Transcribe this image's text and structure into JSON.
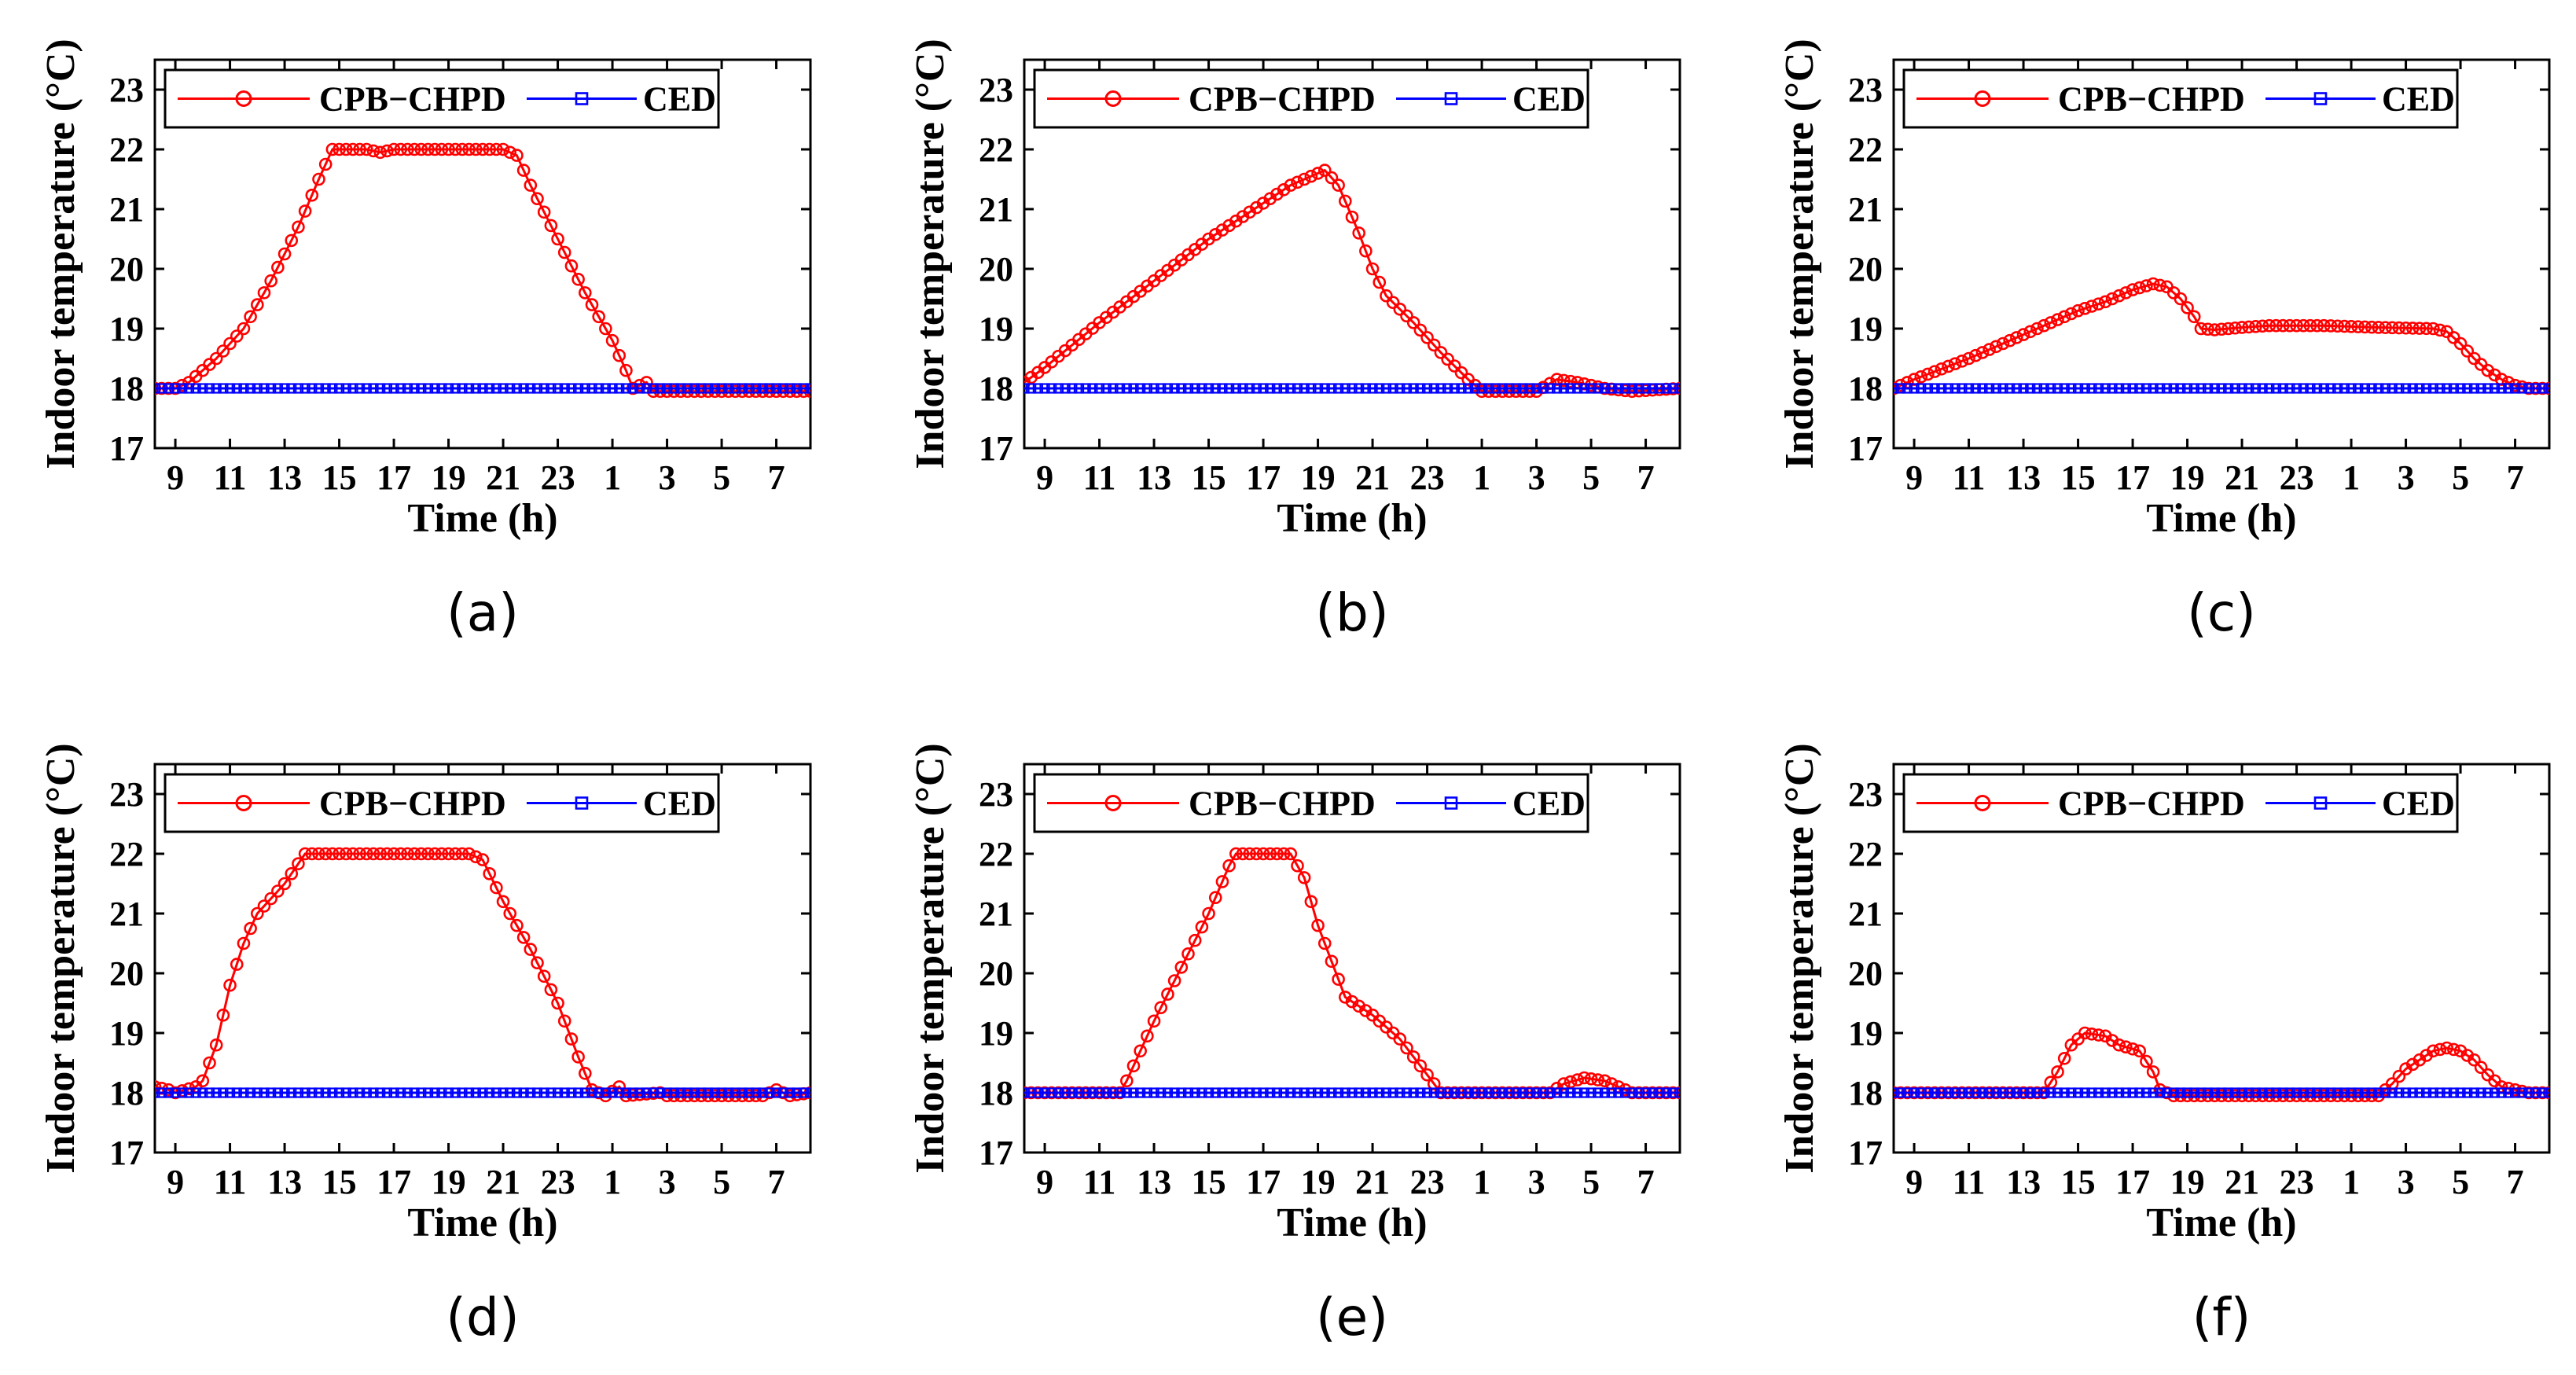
{
  "chart_data": [
    {
      "type": "line",
      "caption": "(a)",
      "xlabel": "Time (h)",
      "ylabel": "Indoor temperature (°C)",
      "xticks": [
        "9",
        "11",
        "13",
        "15",
        "17",
        "19",
        "21",
        "23",
        "1",
        "3",
        "5",
        "7"
      ],
      "yticks": [
        "17",
        "18",
        "19",
        "20",
        "21",
        "22",
        "23"
      ],
      "ylim": [
        17,
        23.5
      ],
      "legend": [
        "CPB−CHPD",
        "CED"
      ],
      "series": [
        {
          "name": "CPB−CHPD",
          "color": "#ff0000",
          "marker": "circle",
          "points": [
            [
              8.25,
              18
            ],
            [
              9,
              18
            ],
            [
              9.5,
              18.1
            ],
            [
              10.5,
              18.5
            ],
            [
              11.5,
              19.0
            ],
            [
              12.5,
              19.8
            ],
            [
              13.5,
              20.7
            ],
            [
              14.25,
              21.5
            ],
            [
              14.75,
              22
            ],
            [
              16,
              22
            ],
            [
              16.5,
              21.95
            ],
            [
              17,
              22
            ],
            [
              21,
              22
            ],
            [
              21.5,
              21.9
            ],
            [
              22,
              21.4
            ],
            [
              23,
              20.5
            ],
            [
              24,
              19.6
            ],
            [
              25,
              18.8
            ],
            [
              25.5,
              18.3
            ],
            [
              25.75,
              18
            ],
            [
              26.25,
              18.1
            ],
            [
              26.5,
              17.95
            ],
            [
              27,
              17.95
            ],
            [
              32.25,
              17.95
            ]
          ]
        },
        {
          "name": "CED",
          "color": "#0000ff",
          "marker": "square",
          "points": [
            [
              8.25,
              18
            ],
            [
              32.25,
              18
            ]
          ]
        }
      ]
    },
    {
      "type": "line",
      "caption": "(b)",
      "xlabel": "Time (h)",
      "ylabel": "Indoor temperature (°C)",
      "xticks": [
        "9",
        "11",
        "13",
        "15",
        "17",
        "19",
        "21",
        "23",
        "1",
        "3",
        "5",
        "7"
      ],
      "yticks": [
        "17",
        "18",
        "19",
        "20",
        "21",
        "22",
        "23"
      ],
      "ylim": [
        17,
        23.5
      ],
      "legend": [
        "CPB−CHPD",
        "CED"
      ],
      "series": [
        {
          "name": "CPB−CHPD",
          "color": "#ff0000",
          "marker": "circle",
          "points": [
            [
              8.25,
              18.1
            ],
            [
              9,
              18.35
            ],
            [
              11,
              19.1
            ],
            [
              13,
              19.8
            ],
            [
              15,
              20.5
            ],
            [
              17,
              21.1
            ],
            [
              18,
              21.4
            ],
            [
              19,
              21.6
            ],
            [
              19.25,
              21.65
            ],
            [
              19.75,
              21.4
            ],
            [
              20.5,
              20.6
            ],
            [
              21,
              20.0
            ],
            [
              21.5,
              19.55
            ],
            [
              22.5,
              19.1
            ],
            [
              23.5,
              18.6
            ],
            [
              24.5,
              18.15
            ],
            [
              25,
              17.95
            ],
            [
              27,
              17.95
            ],
            [
              27.75,
              18.15
            ],
            [
              28.5,
              18.1
            ],
            [
              29,
              18.05
            ],
            [
              29.5,
              18.0
            ],
            [
              30.5,
              17.95
            ],
            [
              32.25,
              18.0
            ]
          ]
        },
        {
          "name": "CED",
          "color": "#0000ff",
          "marker": "square",
          "points": [
            [
              8.25,
              18
            ],
            [
              32.25,
              18
            ]
          ]
        }
      ]
    },
    {
      "type": "line",
      "caption": "(c)",
      "xlabel": "Time (h)",
      "ylabel": "Indoor temperature (°C)",
      "xticks": [
        "9",
        "11",
        "13",
        "15",
        "17",
        "19",
        "21",
        "23",
        "1",
        "3",
        "5",
        "7"
      ],
      "yticks": [
        "17",
        "18",
        "19",
        "20",
        "21",
        "22",
        "23"
      ],
      "ylim": [
        17,
        23.5
      ],
      "legend": [
        "CPB−CHPD",
        "CED"
      ],
      "series": [
        {
          "name": "CPB−CHPD",
          "color": "#ff0000",
          "marker": "circle",
          "points": [
            [
              8.25,
              18
            ],
            [
              9,
              18.15
            ],
            [
              11,
              18.5
            ],
            [
              13,
              18.9
            ],
            [
              15,
              19.3
            ],
            [
              16,
              19.45
            ],
            [
              17,
              19.65
            ],
            [
              17.75,
              19.75
            ],
            [
              18.25,
              19.7
            ],
            [
              18.75,
              19.5
            ],
            [
              19.25,
              19.2
            ],
            [
              19.5,
              19.0
            ],
            [
              20,
              18.98
            ],
            [
              21,
              19.02
            ],
            [
              22,
              19.05
            ],
            [
              24,
              19.05
            ],
            [
              26,
              19.02
            ],
            [
              28,
              19.0
            ],
            [
              28.5,
              18.95
            ],
            [
              29,
              18.75
            ],
            [
              29.5,
              18.5
            ],
            [
              30,
              18.3
            ],
            [
              30.5,
              18.15
            ],
            [
              31,
              18.05
            ],
            [
              31.5,
              18
            ],
            [
              32.25,
              18
            ]
          ]
        },
        {
          "name": "CED",
          "color": "#0000ff",
          "marker": "square",
          "points": [
            [
              8.25,
              18
            ],
            [
              32.25,
              18
            ]
          ]
        }
      ]
    },
    {
      "type": "line",
      "caption": "(d)",
      "xlabel": "Time (h)",
      "ylabel": "Indoor temperature (°C)",
      "xticks": [
        "9",
        "11",
        "13",
        "15",
        "17",
        "19",
        "21",
        "23",
        "1",
        "3",
        "5",
        "7"
      ],
      "yticks": [
        "17",
        "18",
        "19",
        "20",
        "21",
        "22",
        "23"
      ],
      "ylim": [
        17,
        23.5
      ],
      "legend": [
        "CPB−CHPD",
        "CED"
      ],
      "series": [
        {
          "name": "CPB−CHPD",
          "color": "#ff0000",
          "marker": "circle",
          "points": [
            [
              8.25,
              18.1
            ],
            [
              8.75,
              18.05
            ],
            [
              9,
              18
            ],
            [
              9.75,
              18.1
            ],
            [
              10,
              18.2
            ],
            [
              10.5,
              18.8
            ],
            [
              11,
              19.8
            ],
            [
              11.5,
              20.5
            ],
            [
              12,
              21.0
            ],
            [
              13,
              21.5
            ],
            [
              13.75,
              22
            ],
            [
              19.75,
              22
            ],
            [
              20.25,
              21.9
            ],
            [
              21,
              21.2
            ],
            [
              22,
              20.4
            ],
            [
              23,
              19.5
            ],
            [
              23.75,
              18.6
            ],
            [
              24.25,
              18.05
            ],
            [
              24.75,
              17.95
            ],
            [
              25.25,
              18.1
            ],
            [
              25.5,
              17.95
            ],
            [
              26.75,
              18.0
            ],
            [
              27,
              17.95
            ],
            [
              30.5,
              17.95
            ],
            [
              31,
              18.05
            ],
            [
              31.5,
              17.95
            ],
            [
              32.25,
              18
            ]
          ]
        },
        {
          "name": "CED",
          "color": "#0000ff",
          "marker": "square",
          "points": [
            [
              8.25,
              18
            ],
            [
              32.25,
              18
            ]
          ]
        }
      ]
    },
    {
      "type": "line",
      "caption": "(e)",
      "xlabel": "Time (h)",
      "ylabel": "Indoor temperature (°C)",
      "xticks": [
        "9",
        "11",
        "13",
        "15",
        "17",
        "19",
        "21",
        "23",
        "1",
        "3",
        "5",
        "7"
      ],
      "yticks": [
        "17",
        "18",
        "19",
        "20",
        "21",
        "22",
        "23"
      ],
      "ylim": [
        17,
        23.5
      ],
      "legend": [
        "CPB−CHPD",
        "CED"
      ],
      "series": [
        {
          "name": "CPB−CHPD",
          "color": "#ff0000",
          "marker": "circle",
          "points": [
            [
              8.25,
              18
            ],
            [
              11.75,
              18
            ],
            [
              12,
              18.2
            ],
            [
              13,
              19.2
            ],
            [
              14,
              20.1
            ],
            [
              15,
              21.0
            ],
            [
              15.75,
              21.8
            ],
            [
              16,
              22
            ],
            [
              18,
              22
            ],
            [
              18.5,
              21.6
            ],
            [
              19,
              20.8
            ],
            [
              19.5,
              20.2
            ],
            [
              20,
              19.6
            ],
            [
              20.5,
              19.45
            ],
            [
              21,
              19.3
            ],
            [
              22,
              18.9
            ],
            [
              23,
              18.3
            ],
            [
              23.5,
              18
            ],
            [
              27.5,
              18
            ],
            [
              28,
              18.15
            ],
            [
              28.75,
              18.25
            ],
            [
              29.5,
              18.2
            ],
            [
              30,
              18.1
            ],
            [
              30.5,
              18
            ],
            [
              32.25,
              18
            ]
          ]
        },
        {
          "name": "CED",
          "color": "#0000ff",
          "marker": "square",
          "points": [
            [
              8.25,
              18
            ],
            [
              32.25,
              18
            ]
          ]
        }
      ]
    },
    {
      "type": "line",
      "caption": "(f)",
      "xlabel": "Time (h)",
      "ylabel": "Indoor temperature (°C)",
      "xticks": [
        "9",
        "11",
        "13",
        "15",
        "17",
        "19",
        "21",
        "23",
        "1",
        "3",
        "5",
        "7"
      ],
      "yticks": [
        "17",
        "18",
        "19",
        "20",
        "21",
        "22",
        "23"
      ],
      "ylim": [
        17,
        23.5
      ],
      "legend": [
        "CPB−CHPD",
        "CED"
      ],
      "series": [
        {
          "name": "CPB−CHPD",
          "color": "#ff0000",
          "marker": "circle",
          "points": [
            [
              8.25,
              18
            ],
            [
              13.75,
              18
            ],
            [
              14.25,
              18.35
            ],
            [
              14.75,
              18.8
            ],
            [
              15.25,
              19.0
            ],
            [
              16,
              18.95
            ],
            [
              16.5,
              18.8
            ],
            [
              17.25,
              18.7
            ],
            [
              17.75,
              18.35
            ],
            [
              18,
              18.05
            ],
            [
              18.5,
              17.95
            ],
            [
              26,
              17.95
            ],
            [
              26.5,
              18.15
            ],
            [
              27,
              18.4
            ],
            [
              27.5,
              18.55
            ],
            [
              28,
              18.7
            ],
            [
              28.5,
              18.75
            ],
            [
              29,
              18.7
            ],
            [
              29.5,
              18.55
            ],
            [
              30,
              18.3
            ],
            [
              30.5,
              18.1
            ],
            [
              31,
              18.05
            ],
            [
              31.5,
              18
            ],
            [
              32.25,
              18
            ]
          ]
        },
        {
          "name": "CED",
          "color": "#0000ff",
          "marker": "square",
          "points": [
            [
              8.25,
              18
            ],
            [
              32.25,
              18
            ]
          ]
        }
      ]
    }
  ]
}
